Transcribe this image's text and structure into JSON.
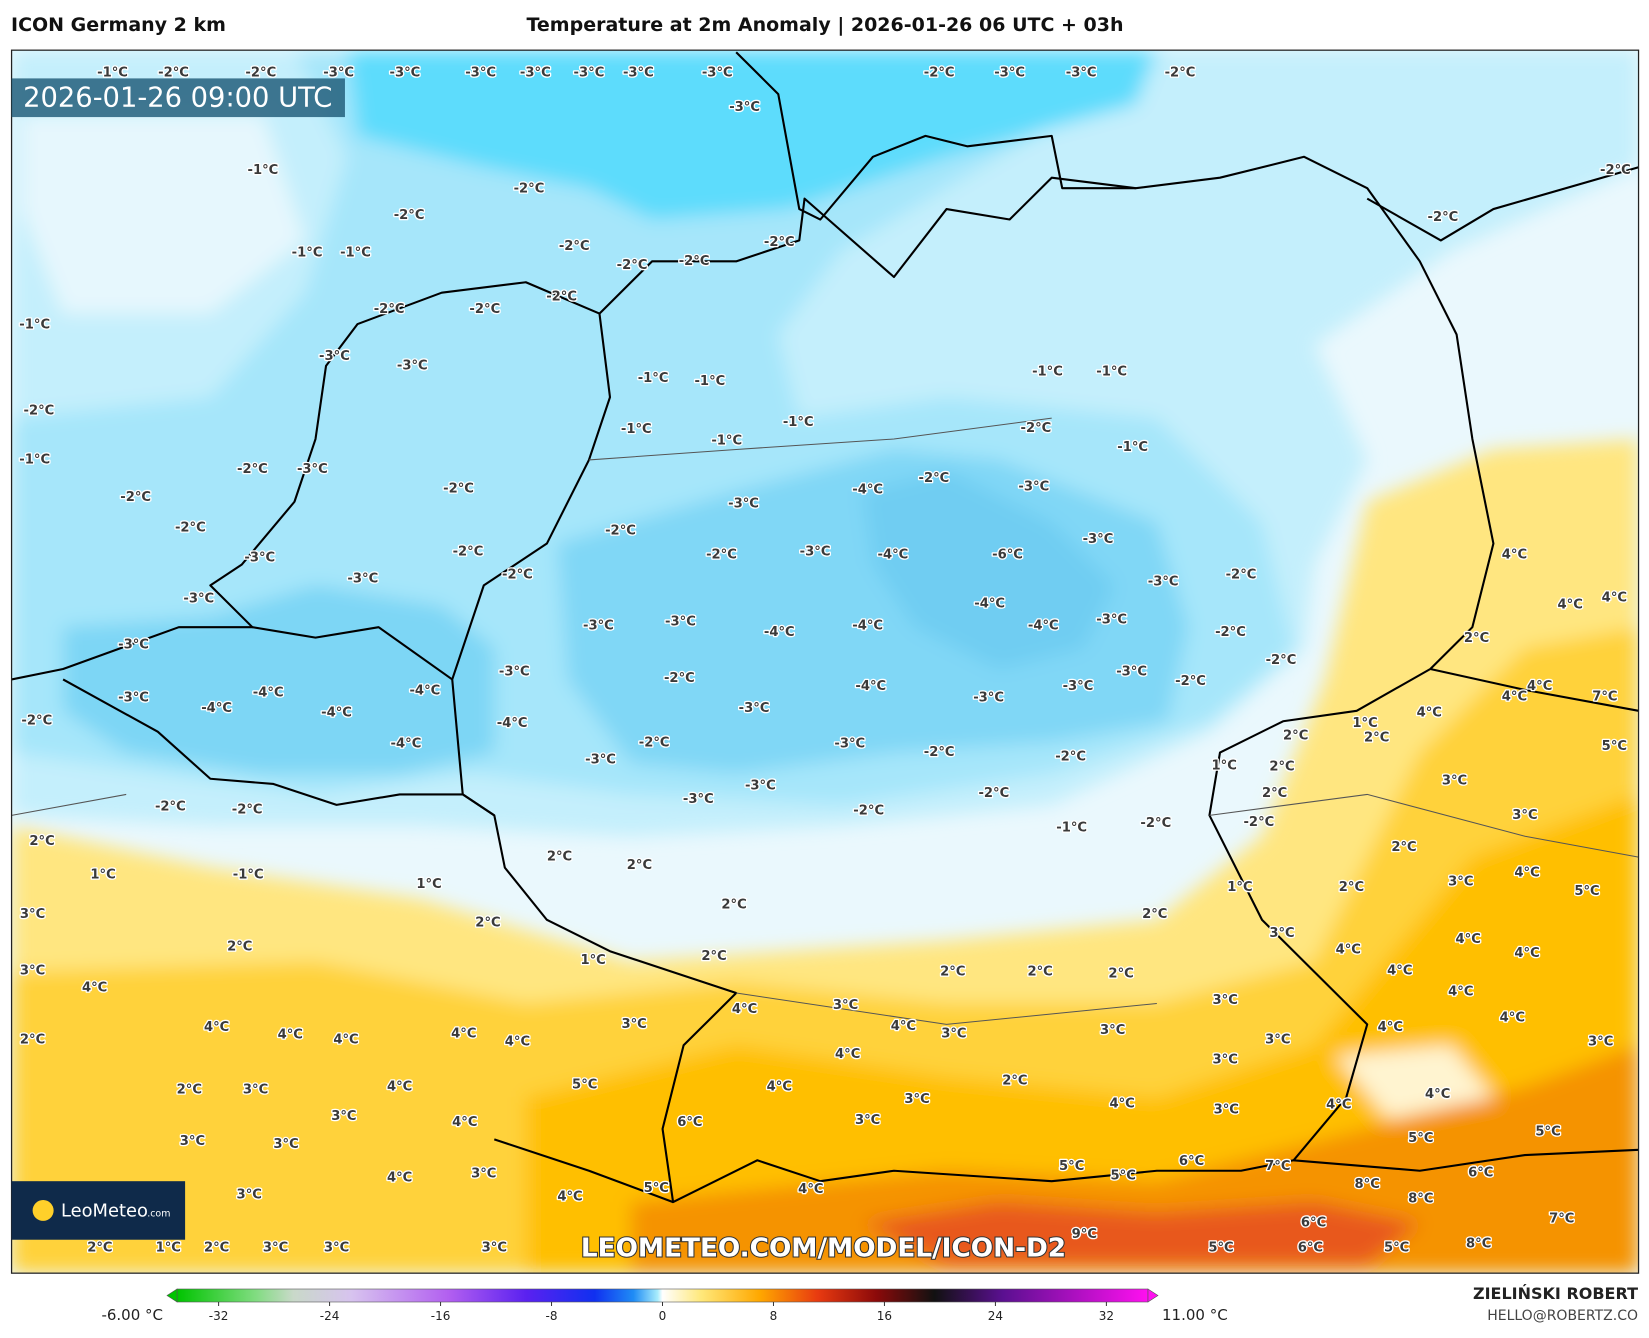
{
  "header": {
    "model": "ICON Germany 2 km",
    "title": "Temperature at 2m Anomaly | 2026-01-26 06 UTC + 03h"
  },
  "map": {
    "valid_time": "2026-01-26 09:00 UTC",
    "watermark": "LEOMETEO.COM/MODEL/ICON-D2",
    "labels": [
      "-1°C",
      "-2°C",
      "-2°C",
      "-3°C",
      "-3°C",
      "-3°C",
      "-3°C",
      "-3°C",
      "-3°C",
      "-3°C",
      "-3°C",
      "-2°C",
      "-3°C",
      "-3°C",
      "-2°C",
      "-1°C",
      "-2°C",
      "-2°C",
      "-1°C",
      "-1°C",
      "-2°C",
      "-2°C",
      "-2°C",
      "-2°C",
      "-2°C",
      "-1°C",
      "-2°C",
      "-2°C",
      "-3°C",
      "-3°C",
      "-2°C",
      "-2°C",
      "-1°C",
      "-1°C",
      "-1°C",
      "-1°C",
      "-2°C",
      "-1°C",
      "-1°C",
      "-1°C",
      "-1°C",
      "-2°C",
      "-1°C",
      "-2°C",
      "-3°C",
      "-2°C",
      "-3°C",
      "-4°C",
      "-2°C",
      "-3°C",
      "-2°C",
      "-2°C",
      "-2°C",
      "-2°C",
      "-3°C",
      "-4°C",
      "-6°C",
      "-3°C",
      "-3°C",
      "-2°C",
      "-2°C",
      "-3°C",
      "-3°C",
      "-2°C",
      "-3°C",
      "-3°C",
      "-3°C",
      "-3°C",
      "-4°C",
      "-4°C",
      "-4°C",
      "-4°C",
      "-3°C",
      "-2°C",
      "-2°C",
      "-3°C",
      "-2°C",
      "-3°C",
      "-2°C",
      "-4°C",
      "-4°C",
      "-3°C",
      "-4°C",
      "-4°C",
      "-4°C",
      "-3°C",
      "-3°C",
      "-3°C",
      "-2°C",
      "-4°C",
      "-4°C",
      "-2°C",
      "-3°C",
      "-2°C",
      "-2°C",
      "-3°C",
      "-3°C",
      "-3°C",
      "-2°C",
      "-2°C",
      "-2°C",
      "-2°C",
      "-1°C",
      "-2°C",
      "-2°C",
      "2°C",
      "1°C",
      "-1°C",
      "1°C",
      "2°C",
      "2°C",
      "2°C",
      "2°C",
      "3°C",
      "4°C",
      "5°C",
      "1°C",
      "3°C",
      "2°C",
      "2°C",
      "2°C",
      "2°C",
      "1°C",
      "2°C",
      "3°C",
      "4°C",
      "3°C",
      "4°C",
      "4°C",
      "4°C",
      "4°C",
      "4°C",
      "2°C",
      "2°C",
      "2°C",
      "2°C",
      "4°C",
      "4°C",
      "4°C",
      "4°C",
      "4°C",
      "3°C",
      "4°C",
      "3°C",
      "4°C",
      "3°C",
      "3°C",
      "3°C",
      "3°C",
      "4°C",
      "4°C",
      "3°C",
      "4°C",
      "3°C",
      "2°C",
      "3°C",
      "4°C",
      "5°C",
      "4°C",
      "2°C",
      "3°C",
      "4°C",
      "3°C",
      "4°C",
      "4°C",
      "3°C",
      "4°C",
      "6°C",
      "3°C",
      "5°C",
      "3°C",
      "3°C",
      "3°C",
      "5°C",
      "4°C",
      "5°C",
      "5°C",
      "6°C",
      "7°C",
      "6°C",
      "8°C",
      "3°C",
      "4°C",
      "5°C",
      "4°C",
      "6°C",
      "8°C",
      "7°C",
      "2°C",
      "1°C",
      "2°C",
      "3°C",
      "3°C",
      "3°C",
      "9°C",
      "5°C",
      "6°C",
      "5°C",
      "8°C",
      "4°C",
      "4°C",
      "4°C",
      "4°C",
      "2°C",
      "4°C",
      "7°C",
      "5°C",
      "4°C",
      "2°C",
      "2°C",
      "1°C",
      "1°C",
      "2°C",
      "2°C",
      "3°C",
      "3°C"
    ]
  },
  "logo": {
    "name": "LeoMeteo",
    "domain": ".com"
  },
  "colorbar": {
    "min_label": "-6.00 °C",
    "max_label": "11.00 °C",
    "lim": [
      -35,
      35
    ],
    "ticks": [
      -32,
      -24,
      -16,
      -8,
      0,
      8,
      16,
      24,
      32
    ]
  },
  "footer": {
    "author": "ZIELIŃSKI ROBERT",
    "email": "HELLO@ROBERTZ.CO"
  }
}
